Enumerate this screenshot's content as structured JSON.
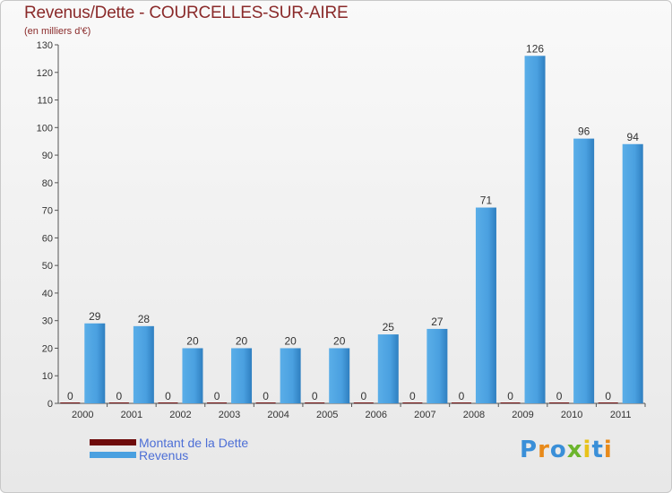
{
  "title": "Revenus/Dette - COURCELLES-SUR-AIRE",
  "subtitle": "(en milliers d'€)",
  "logo": {
    "text": "Proxiti",
    "letters": [
      {
        "ch": "P",
        "color": "#3a8fd8"
      },
      {
        "ch": "r",
        "color": "#e88a1a"
      },
      {
        "ch": "o",
        "color": "#3a8fd8"
      },
      {
        "ch": "x",
        "color": "#6cb52d"
      },
      {
        "ch": "i",
        "color": "#e8c21a"
      },
      {
        "ch": "t",
        "color": "#3a8fd8"
      },
      {
        "ch": "i",
        "color": "#e88a1a"
      }
    ]
  },
  "chart_data": {
    "type": "bar",
    "categories": [
      "2000",
      "2001",
      "2002",
      "2003",
      "2004",
      "2005",
      "2006",
      "2007",
      "2008",
      "2009",
      "2010",
      "2011"
    ],
    "series": [
      {
        "name": "Montant de la Dette",
        "color": "#6e0b0b",
        "values": [
          0,
          0,
          0,
          0,
          0,
          0,
          0,
          0,
          0,
          0,
          0,
          0
        ]
      },
      {
        "name": "Revenus",
        "color": "#4aa0e0",
        "values": [
          29,
          28,
          20,
          20,
          20,
          20,
          25,
          27,
          71,
          126,
          96,
          94
        ]
      }
    ],
    "ylim": [
      0,
      130
    ],
    "yticks": [
      0,
      10,
      20,
      30,
      40,
      50,
      60,
      70,
      80,
      90,
      100,
      110,
      120,
      130
    ],
    "grid": false,
    "legend": "bottom-left"
  }
}
